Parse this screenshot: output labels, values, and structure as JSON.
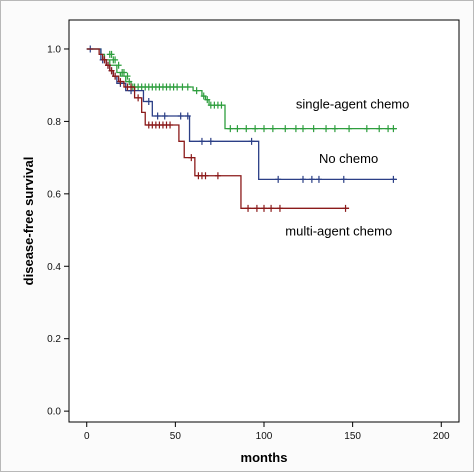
{
  "chart_data": {
    "type": "line",
    "xlabel": "months",
    "ylabel": "disease-free survival",
    "xlim": [
      -10,
      210
    ],
    "ylim": [
      -0.03,
      1.08
    ],
    "xticks": [
      0,
      50,
      100,
      150,
      200
    ],
    "yticks": [
      0.0,
      0.2,
      0.4,
      0.6,
      0.8,
      1.0
    ],
    "xtick_labels": [
      "0",
      "50",
      "100",
      "150",
      "200"
    ],
    "ytick_labels": [
      "0.0",
      "0.2",
      "0.4",
      "0.6",
      "0.8",
      "1.0"
    ],
    "grid": false,
    "legend": "none",
    "series": [
      {
        "name": "single-agent chemo",
        "color": "#2e9e3e",
        "steps": [
          [
            0,
            1.0
          ],
          [
            8,
            0.985
          ],
          [
            10,
            0.97
          ],
          [
            13,
            0.955
          ],
          [
            17,
            0.935
          ],
          [
            19,
            0.925
          ],
          [
            22,
            0.91
          ],
          [
            25,
            0.895
          ],
          [
            60,
            0.885
          ],
          [
            65,
            0.87
          ],
          [
            67,
            0.86
          ],
          [
            69,
            0.845
          ],
          [
            78,
            0.78
          ],
          [
            175,
            0.78
          ]
        ],
        "censored": [
          [
            13,
            0.985
          ],
          [
            14,
            0.985
          ],
          [
            15,
            0.97
          ],
          [
            16,
            0.97
          ],
          [
            18,
            0.955
          ],
          [
            20,
            0.935
          ],
          [
            21,
            0.935
          ],
          [
            23,
            0.925
          ],
          [
            24,
            0.91
          ],
          [
            26,
            0.895
          ],
          [
            27,
            0.895
          ],
          [
            29,
            0.895
          ],
          [
            31,
            0.895
          ],
          [
            33,
            0.895
          ],
          [
            35,
            0.895
          ],
          [
            37,
            0.895
          ],
          [
            39,
            0.895
          ],
          [
            41,
            0.895
          ],
          [
            43,
            0.895
          ],
          [
            45,
            0.895
          ],
          [
            47,
            0.895
          ],
          [
            49,
            0.895
          ],
          [
            51,
            0.895
          ],
          [
            54,
            0.895
          ],
          [
            57,
            0.895
          ],
          [
            62,
            0.885
          ],
          [
            66,
            0.87
          ],
          [
            68,
            0.86
          ],
          [
            70,
            0.845
          ],
          [
            72,
            0.845
          ],
          [
            74,
            0.845
          ],
          [
            76,
            0.845
          ],
          [
            81,
            0.78
          ],
          [
            85,
            0.78
          ],
          [
            90,
            0.78
          ],
          [
            95,
            0.78
          ],
          [
            100,
            0.78
          ],
          [
            105,
            0.78
          ],
          [
            112,
            0.78
          ],
          [
            118,
            0.78
          ],
          [
            122,
            0.78
          ],
          [
            128,
            0.78
          ],
          [
            135,
            0.78
          ],
          [
            140,
            0.78
          ],
          [
            148,
            0.78
          ],
          [
            158,
            0.78
          ],
          [
            165,
            0.78
          ],
          [
            170,
            0.78
          ],
          [
            173,
            0.78
          ]
        ]
      },
      {
        "name": "No chemo",
        "color": "#2b3f86",
        "steps": [
          [
            0,
            1.0
          ],
          [
            8,
            0.97
          ],
          [
            11,
            0.955
          ],
          [
            13,
            0.94
          ],
          [
            15,
            0.925
          ],
          [
            17,
            0.905
          ],
          [
            22,
            0.885
          ],
          [
            32,
            0.855
          ],
          [
            37,
            0.815
          ],
          [
            58,
            0.745
          ],
          [
            97,
            0.64
          ],
          [
            175,
            0.64
          ]
        ],
        "censored": [
          [
            2,
            1.0
          ],
          [
            9,
            0.97
          ],
          [
            12,
            0.955
          ],
          [
            14,
            0.94
          ],
          [
            16,
            0.925
          ],
          [
            19,
            0.905
          ],
          [
            25,
            0.885
          ],
          [
            35,
            0.855
          ],
          [
            40,
            0.815
          ],
          [
            44,
            0.815
          ],
          [
            53,
            0.815
          ],
          [
            57,
            0.815
          ],
          [
            65,
            0.745
          ],
          [
            70,
            0.745
          ],
          [
            93,
            0.745
          ],
          [
            108,
            0.64
          ],
          [
            122,
            0.64
          ],
          [
            127,
            0.64
          ],
          [
            131,
            0.64
          ],
          [
            145,
            0.64
          ],
          [
            173,
            0.64
          ]
        ]
      },
      {
        "name": "multi-agent chemo",
        "color": "#8b1a1a",
        "steps": [
          [
            0,
            1.0
          ],
          [
            7,
            0.985
          ],
          [
            9,
            0.97
          ],
          [
            11,
            0.955
          ],
          [
            13,
            0.94
          ],
          [
            15,
            0.925
          ],
          [
            18,
            0.91
          ],
          [
            21,
            0.895
          ],
          [
            27,
            0.865
          ],
          [
            31,
            0.825
          ],
          [
            33,
            0.79
          ],
          [
            52,
            0.745
          ],
          [
            55,
            0.7
          ],
          [
            61,
            0.65
          ],
          [
            87,
            0.56
          ],
          [
            148,
            0.56
          ]
        ],
        "censored": [
          [
            10,
            0.97
          ],
          [
            12,
            0.955
          ],
          [
            14,
            0.94
          ],
          [
            16,
            0.925
          ],
          [
            19,
            0.91
          ],
          [
            23,
            0.895
          ],
          [
            25,
            0.895
          ],
          [
            29,
            0.865
          ],
          [
            35,
            0.79
          ],
          [
            37,
            0.79
          ],
          [
            39,
            0.79
          ],
          [
            41,
            0.79
          ],
          [
            43,
            0.79
          ],
          [
            45,
            0.79
          ],
          [
            47,
            0.79
          ],
          [
            59,
            0.7
          ],
          [
            63,
            0.65
          ],
          [
            65,
            0.65
          ],
          [
            67,
            0.65
          ],
          [
            74,
            0.65
          ],
          [
            91,
            0.56
          ],
          [
            96,
            0.56
          ],
          [
            100,
            0.56
          ],
          [
            104,
            0.56
          ],
          [
            109,
            0.56
          ],
          [
            146,
            0.56
          ]
        ]
      }
    ],
    "annotations": [
      {
        "text": "single-agent chemo",
        "x": 118,
        "y": 0.835
      },
      {
        "text": "No chemo",
        "x": 131,
        "y": 0.685
      },
      {
        "text": "multi-agent chemo",
        "x": 112,
        "y": 0.485
      }
    ]
  }
}
